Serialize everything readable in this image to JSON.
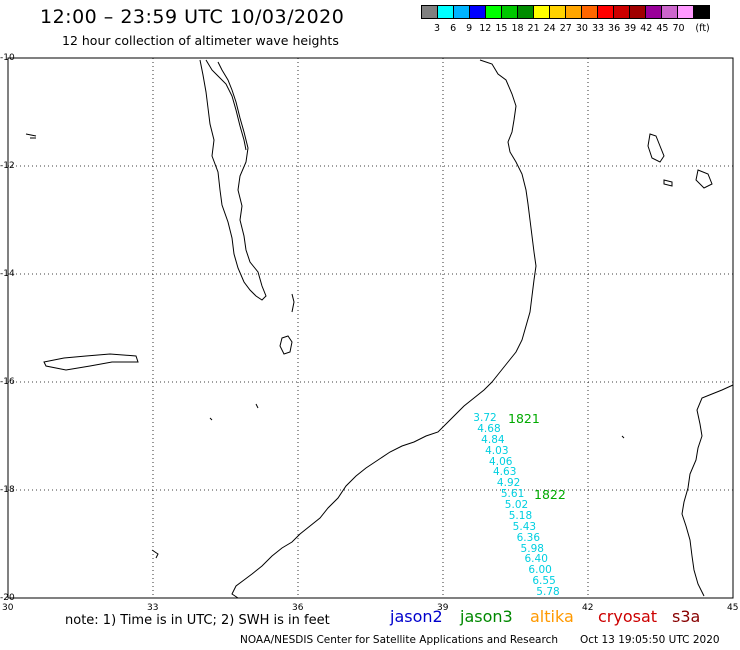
{
  "header": {
    "title": "12:00 – 23:59 UTC 10/03/2020",
    "subtitle": "12 hour collection of altimeter wave heights"
  },
  "scale": {
    "colors": [
      "#808080",
      "#00ffff",
      "#00b4ff",
      "#0000ff",
      "#00ff00",
      "#00c800",
      "#008c00",
      "#ffff00",
      "#ffd200",
      "#ffa500",
      "#ff6600",
      "#ff0000",
      "#cc0000",
      "#a00000",
      "#990099",
      "#cc66cc",
      "#ff99ff",
      "#000000"
    ],
    "labels": [
      "3",
      "6",
      "9",
      "12",
      "15",
      "18",
      "21",
      "24",
      "27",
      "30",
      "33",
      "36",
      "39",
      "42",
      "45",
      "70",
      "(ft)"
    ]
  },
  "axes": {
    "lat_labels": [
      "-10",
      "-12",
      "-14",
      "-16",
      "-18",
      "-20"
    ],
    "lon_labels": [
      "30",
      "33",
      "36",
      "39",
      "42",
      "45"
    ]
  },
  "observations": {
    "track_ids": [
      "1821",
      "1822"
    ],
    "values": [
      "3.72",
      "4.68",
      "4.84",
      "4.03",
      "4.06",
      "4.63",
      "4.92",
      "5.61",
      "5.02",
      "5.18",
      "5.43",
      "6.36",
      "5.98",
      "6.40",
      "6.00",
      "6.55",
      "5.78"
    ]
  },
  "footer": {
    "note": "note: 1) Time is in UTC; 2) SWH is in feet",
    "legend": [
      {
        "label": "jason2",
        "color": "#0000cc"
      },
      {
        "label": "jason3",
        "color": "#008800"
      },
      {
        "label": "altika",
        "color": "#ff9900"
      },
      {
        "label": "cryosat",
        "color": "#cc0000"
      },
      {
        "label": "s3a",
        "color": "#880000"
      }
    ],
    "credit": "NOAA/NESDIS Center for Satellite Applications and Research",
    "timestamp": "Oct 13 19:05:50 UTC 2020"
  }
}
